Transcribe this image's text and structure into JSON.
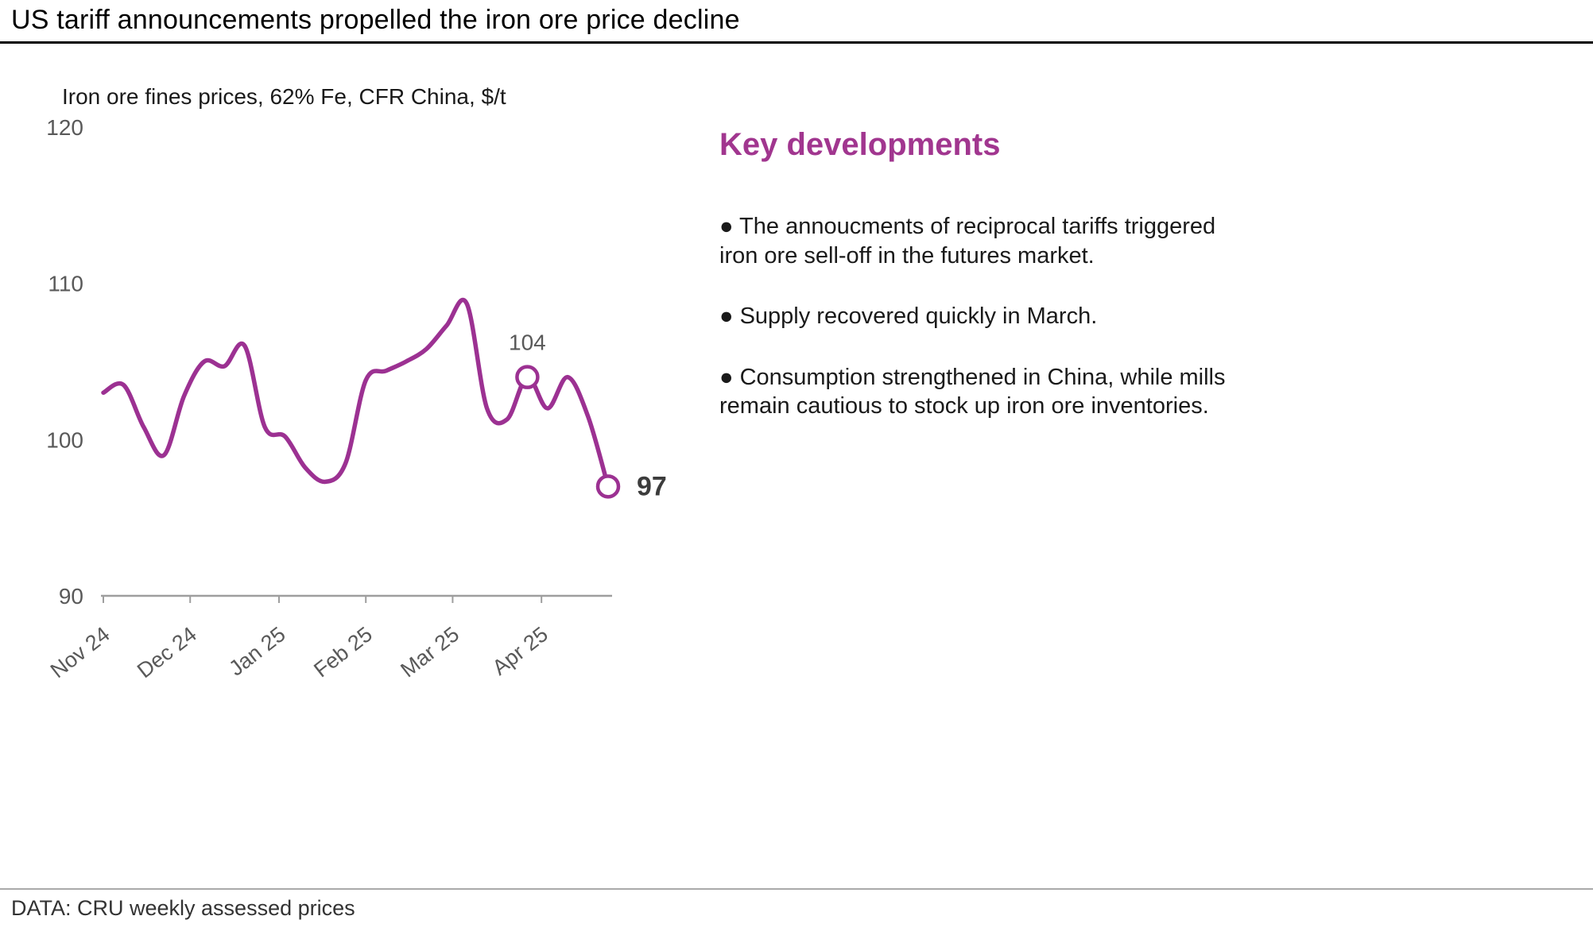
{
  "header": {
    "title": "US tariff announcements propelled the iron ore price decline"
  },
  "panel": {
    "heading": "Key developments",
    "accent_color": "#a1368f",
    "bullets": [
      "● The annoucments of reciprocal tariffs triggered iron ore sell-off in the futures market.",
      "● Supply recovered quickly in March.",
      "● Consumption strengthened in China, while mills remain cautious to stock up iron ore inventories."
    ]
  },
  "footer": {
    "source": "DATA: CRU weekly assessed prices"
  },
  "chart_data": {
    "type": "line",
    "title": "Iron ore fines prices, 62% Fe, CFR China, $/t",
    "ylabel": "$/t",
    "ylim": [
      90,
      120
    ],
    "y_ticks": [
      120,
      110,
      100,
      90
    ],
    "grid": false,
    "legend": "none",
    "line_color": "#9c3192",
    "axis_color": "#9e9e9e",
    "label_color": "#595959",
    "x_unit": "week index from early Nov 2024, weekly assessed prices",
    "x_ticks": [
      {
        "pos": 0,
        "label": "Nov 24"
      },
      {
        "pos": 4.3,
        "label": "Dec 24"
      },
      {
        "pos": 8.7,
        "label": "Jan 25"
      },
      {
        "pos": 13.0,
        "label": "Feb 25"
      },
      {
        "pos": 17.3,
        "label": "Mar 25"
      },
      {
        "pos": 21.7,
        "label": "Apr 25"
      }
    ],
    "series": [
      {
        "name": "Iron ore fines price, 62% Fe, CFR China",
        "values": [
          103,
          103.5,
          100.8,
          99,
          102.8,
          105,
          104.7,
          106,
          100.8,
          100.2,
          98.2,
          97.3,
          98.5,
          103.8,
          104.4,
          105,
          105.8,
          107.3,
          108.7,
          102,
          101.3,
          104,
          102,
          104,
          101.5,
          97
        ]
      }
    ],
    "annotations": [
      {
        "index": 21,
        "label": "104",
        "value": 104,
        "position": "above",
        "bold": false
      },
      {
        "index": 25,
        "label": "97",
        "value": 97,
        "position": "right",
        "bold": true
      }
    ]
  }
}
